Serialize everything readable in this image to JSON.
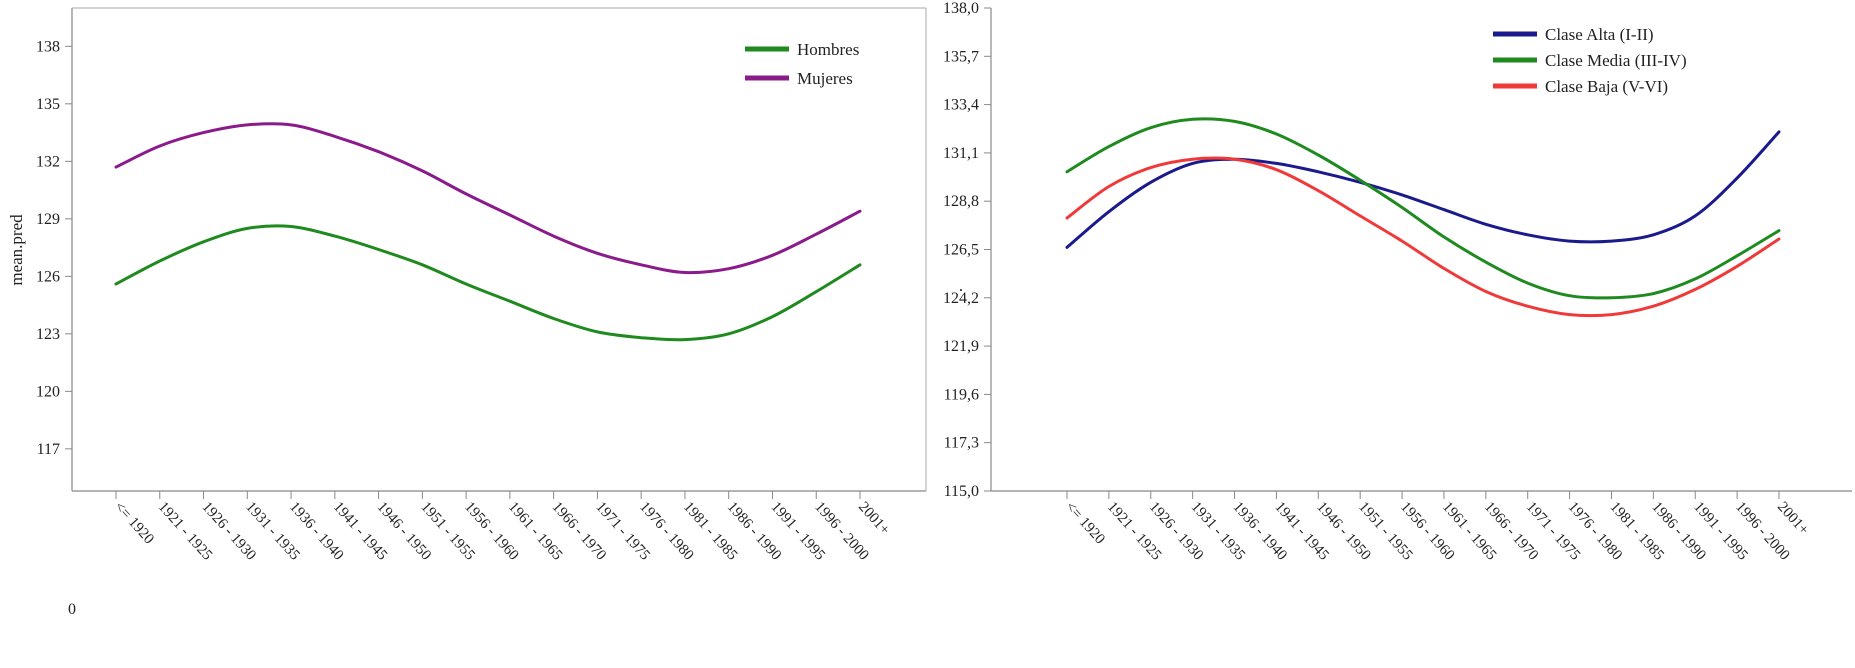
{
  "chart_data": [
    {
      "type": "line",
      "title": "",
      "xlabel": "",
      "ylabel": "mean.pred",
      "x_origin_label": "0",
      "categories": [
        "<= 1920",
        "1921 - 1925",
        "1926 - 1930",
        "1931 - 1935",
        "1936 - 1940",
        "1941 - 1945",
        "1946 - 1950",
        "1951 - 1955",
        "1956 - 1960",
        "1961 - 1965",
        "1966 - 1970",
        "1971 - 1975",
        "1976 - 1980",
        "1981 - 1985",
        "1986 - 1990",
        "1991 - 1995",
        "1996 - 2000",
        "2001+"
      ],
      "yticks": [
        "138",
        "135",
        "132",
        "129",
        "126",
        "123",
        "120",
        "117"
      ],
      "ytick_values": [
        138,
        135,
        132,
        129,
        126,
        123,
        120,
        117
      ],
      "ylim": [
        114.8,
        140
      ],
      "grid": false,
      "legend_position": "top-right",
      "series": [
        {
          "name": "Hombres",
          "color": "#1f8a1f",
          "values": [
            125.6,
            126.8,
            127.8,
            128.5,
            128.6,
            128.1,
            127.4,
            126.6,
            125.6,
            124.7,
            123.8,
            123.1,
            122.8,
            122.7,
            123.0,
            123.9,
            125.2,
            126.6
          ]
        },
        {
          "name": "Mujeres",
          "color": "#8b1a8b",
          "values": [
            131.7,
            132.8,
            133.5,
            133.9,
            133.9,
            133.3,
            132.5,
            131.5,
            130.3,
            129.2,
            128.1,
            127.2,
            126.6,
            126.2,
            126.4,
            127.1,
            128.2,
            129.4
          ]
        }
      ]
    },
    {
      "type": "line",
      "title": "",
      "xlabel": "",
      "ylabel": ".",
      "categories": [
        "<= 1920",
        "1921 - 1925",
        "1926 - 1930",
        "1931 - 1935",
        "1936 - 1940",
        "1941 - 1945",
        "1946 - 1950",
        "1951 - 1955",
        "1956 - 1960",
        "1961 - 1965",
        "1966 - 1970",
        "1971 - 1975",
        "1976 - 1980",
        "1981 - 1985",
        "1986 - 1990",
        "1991 - 1995",
        "1996 - 2000",
        "2001+"
      ],
      "yticks": [
        "138,0",
        "135,7",
        "133,4",
        "131,1",
        "128,8",
        "126,5",
        "124,2",
        "121,9",
        "119,6",
        "117,3",
        "115,0"
      ],
      "ytick_values": [
        138.0,
        135.7,
        133.4,
        131.1,
        128.8,
        126.5,
        124.2,
        121.9,
        119.6,
        117.3,
        115.0
      ],
      "ylim": [
        115.0,
        138.0
      ],
      "grid": false,
      "legend_position": "top-right",
      "series": [
        {
          "name": "Clase Alta (I-II)",
          "color": "#1a1a8c",
          "values": [
            126.6,
            128.3,
            129.7,
            130.6,
            130.8,
            130.6,
            130.2,
            129.7,
            129.1,
            128.4,
            127.7,
            127.2,
            126.9,
            126.9,
            127.2,
            128.1,
            129.9,
            132.1
          ]
        },
        {
          "name": "Clase Media (III-IV)",
          "color": "#1f8a1f",
          "values": [
            130.2,
            131.4,
            132.3,
            132.7,
            132.6,
            132.0,
            131.0,
            129.8,
            128.5,
            127.1,
            125.9,
            124.9,
            124.3,
            124.2,
            124.4,
            125.1,
            126.2,
            127.4
          ]
        },
        {
          "name": "Clase Baja (V-VI)",
          "color": "#f03a3a",
          "values": [
            128.0,
            129.5,
            130.4,
            130.8,
            130.8,
            130.3,
            129.3,
            128.1,
            126.9,
            125.6,
            124.5,
            123.8,
            123.4,
            123.4,
            123.8,
            124.6,
            125.7,
            127.0
          ]
        }
      ]
    }
  ]
}
